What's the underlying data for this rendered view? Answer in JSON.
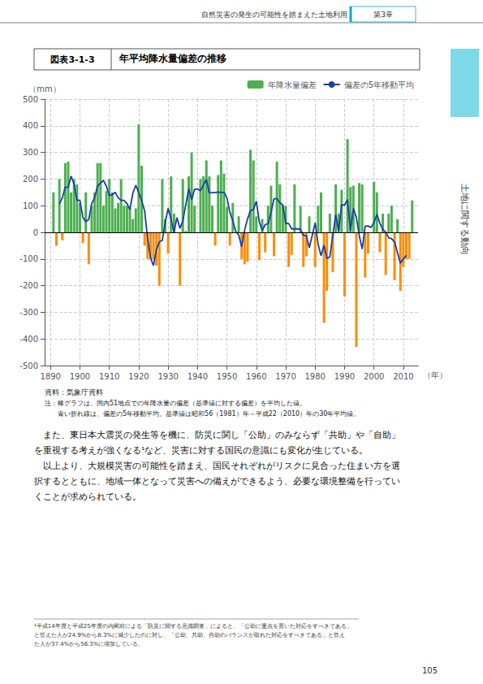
{
  "chart_data": {
    "type": "bar",
    "title": "年平均降水量偏差の推移",
    "xlabel": "（年）",
    "ylabel": "（mm）",
    "annotations": [
      "図表3-1-3",
      "自然災害の発生の可能性を踏まえた土地利用",
      "第3章",
      "土地に関する動向",
      "資料：気象庁資料",
      "注：棒グラフは、国内51地点での年降水量の偏差（基準値に対する偏差）を平均した値。",
      "　　青い折れ線は、偏差の5年移動平均。基準値は昭和56（1981）年～平成22（2010）年の30年平均値。",
      "　また、東日本大震災の発生等を機に、防災に関し「公助」のみならず「共助」や「自助」",
      "を重視する考えが強くなる¹など、災害に対する国民の意識にも変化が生じている。",
      "　以上より、大規模災害の可能性を踏まえ、国民それぞれがリスクに見合った住まい方を選",
      "択するとともに、地域一体となって災害への備えができるよう、必要な環境整備を行ってい",
      "くことが求められている。",
      "¹平成14年度と平成25年度の内閣府による「防災に関する意識調査」によると、「公助に重点を置いた対応をすべきである」",
      "と答えた人が24.9%から8.3%に減少したのに対し、「公助、共助、自助のバランスが取れた対応をすべきである」と答え",
      "た人が37.4%から56.3%に増加している。",
      "105"
    ],
    "x": [
      1891,
      1892,
      1893,
      1894,
      1895,
      1896,
      1897,
      1898,
      1899,
      1900,
      1901,
      1902,
      1903,
      1904,
      1905,
      1906,
      1907,
      1908,
      1909,
      1910,
      1911,
      1912,
      1913,
      1914,
      1915,
      1916,
      1917,
      1918,
      1919,
      1920,
      1921,
      1922,
      1923,
      1924,
      1925,
      1926,
      1927,
      1928,
      1929,
      1930,
      1931,
      1932,
      1933,
      1934,
      1935,
      1936,
      1937,
      1938,
      1939,
      1940,
      1941,
      1942,
      1943,
      1944,
      1945,
      1946,
      1947,
      1948,
      1949,
      1950,
      1951,
      1952,
      1953,
      1954,
      1955,
      1956,
      1957,
      1958,
      1959,
      1960,
      1961,
      1962,
      1963,
      1964,
      1965,
      1966,
      1967,
      1968,
      1969,
      1970,
      1971,
      1972,
      1973,
      1974,
      1975,
      1976,
      1977,
      1978,
      1979,
      1980,
      1981,
      1982,
      1983,
      1984,
      1985,
      1986,
      1987,
      1988,
      1989,
      1990,
      1991,
      1992,
      1993,
      1994,
      1995,
      1996,
      1997,
      1998,
      1999,
      2000,
      2001,
      2002,
      2003,
      2004,
      2005,
      2006,
      2007,
      2008,
      2009,
      2010,
      2011,
      2012,
      2013
    ],
    "series": [
      {
        "name": "年降水量偏差",
        "type": "bar",
        "color": "#4caf50",
        "colors": [
          "#4caf50",
          "#ff8c00",
          "#4caf50",
          "#ff8c00",
          "#4caf50",
          "#4caf50",
          "#4caf50",
          "#4caf50",
          "#4caf50",
          "#4caf50",
          "#ff8c00",
          "#4caf50",
          "#ff8c00",
          "#4caf50",
          "#4caf50",
          "#4caf50",
          "#4caf50",
          "#4caf50",
          "#4caf50",
          "#4caf50",
          "#4caf50",
          "#4caf50",
          "#4caf50",
          "#4caf50",
          "#4caf50",
          "#4caf50",
          "#4caf50",
          "#4caf50",
          "#4caf50",
          "#4caf50",
          "#4caf50",
          "#ff8c00",
          "#ff8c00",
          "#ff8c00",
          "#ff8c00",
          "#ff8c00",
          "#ff8c00",
          "#4caf50",
          "#4caf50",
          "#ff8c00",
          "#4caf50",
          "#4caf50",
          "#4caf50",
          "#ff8c00",
          "#4caf50",
          "#4caf50",
          "#4caf50",
          "#4caf50",
          "#4caf50",
          "#4caf50",
          "#4caf50",
          "#4caf50",
          "#4caf50",
          "#4caf50",
          "#4caf50",
          "#ff8c00",
          "#4caf50",
          "#4caf50",
          "#4caf50",
          "#4caf50",
          "#ff8c00",
          "#4caf50",
          "#4caf50",
          "#4caf50",
          "#ff8c00",
          "#ff8c00",
          "#ff8c00",
          "#4caf50",
          "#4caf50",
          "#4caf50",
          "#ff8c00",
          "#4caf50",
          "#ff8c00",
          "#4caf50",
          "#4caf50",
          "#ff8c00",
          "#4caf50",
          "#4caf50",
          "#4caf50",
          "#4caf50",
          "#ff8c00",
          "#ff8c00",
          "#4caf50",
          "#4caf50",
          "#4caf50",
          "#ff8c00",
          "#ff8c00",
          "#4caf50",
          "#4caf50",
          "#ff8c00",
          "#4caf50",
          "#4caf50",
          "#ff8c00",
          "#ff8c00",
          "#4caf50",
          "#ff8c00",
          "#4caf50",
          "#4caf50",
          "#4caf50",
          "#ff8c00",
          "#4caf50",
          "#4caf50",
          "#4caf50",
          "#ff8c00",
          "#4caf50",
          "#4caf50",
          "#ff8c00",
          "#ff8c00",
          "#4caf50",
          "#4caf50",
          "#4caf50",
          "#ff8c00",
          "#4caf50",
          "#ff8c00",
          "#4caf50",
          "#4caf50",
          "#ff8c00",
          "#4caf50",
          "#ff8c00",
          "#ff8c00",
          "#ff8c00",
          "#ff8c00",
          "#4caf50"
        ],
        "values": [
          150,
          -50,
          200,
          -30,
          260,
          265,
          150,
          200,
          180,
          110,
          -40,
          150,
          -120,
          100,
          150,
          260,
          260,
          100,
          155,
          200,
          150,
          90,
          110,
          200,
          100,
          100,
          90,
          50,
          90,
          405,
          250,
          -50,
          -100,
          -100,
          -100,
          -125,
          -200,
          200,
          50,
          -80,
          210,
          70,
          0,
          -200,
          200,
          5,
          210,
          300,
          100,
          0,
          200,
          210,
          270,
          210,
          100,
          -50,
          215,
          270,
          220,
          95,
          -50,
          110,
          0,
          60,
          -100,
          -120,
          -110,
          310,
          270,
          60,
          -105,
          50,
          -75,
          100,
          175,
          -90,
          265,
          180,
          100,
          100,
          -130,
          -85,
          180,
          0,
          100,
          -130,
          -90,
          60,
          0,
          -130,
          100,
          150,
          -340,
          -220,
          70,
          -150,
          180,
          70,
          160,
          -240,
          350,
          170,
          175,
          -430,
          185,
          180,
          -170,
          -80,
          0,
          190,
          150,
          -75,
          70,
          -160,
          70,
          100,
          -180,
          50,
          -220,
          -130,
          -100,
          -100,
          120
        ]
      },
      {
        "name": "偏差の5年移動平均",
        "type": "line",
        "color": "#1a3faa",
        "values": [
          null,
          null,
          106,
          129,
          169,
          169,
          211,
          181,
          120,
          120,
          56,
          40,
          48,
          108,
          130,
          174,
          185,
          195,
          173,
          139,
          141,
          150,
          130,
          120,
          120,
          108,
          86,
          147,
          177,
          149,
          119,
          81,
          -20,
          -95,
          -125,
          -65,
          -35,
          -31,
          36,
          90,
          50,
          0,
          56,
          15,
          43,
          103,
          163,
          123,
          162,
          162,
          156,
          178,
          198,
          148,
          149,
          149,
          151,
          150,
          150,
          129,
          75,
          43,
          4,
          -10,
          -54,
          8,
          50,
          82,
          85,
          117,
          40,
          6,
          29,
          32,
          75,
          126,
          126,
          111,
          103,
          33,
          33,
          13,
          13,
          13,
          12,
          -12,
          -12,
          -58,
          -12,
          36,
          -44,
          -88,
          -48,
          -98,
          -92,
          -10,
          66,
          4,
          104,
          102,
          123,
          5,
          90,
          56,
          -12,
          -63,
          23,
          24,
          18,
          37,
          67,
          35,
          11,
          1,
          -20,
          -24,
          -36,
          -76,
          -116,
          -100,
          -86,
          null,
          null
        ]
      }
    ],
    "xlim": [
      1888,
      2015
    ],
    "xticks": [
      1890,
      1900,
      1910,
      1920,
      1930,
      1940,
      1950,
      1960,
      1970,
      1980,
      1990,
      2000,
      2010
    ],
    "ylim": [
      -500,
      500
    ],
    "yticks": [
      -500,
      -400,
      -300,
      -200,
      -100,
      0,
      100,
      200,
      300,
      400,
      500
    ],
    "grid": true,
    "legend": "upper right"
  }
}
